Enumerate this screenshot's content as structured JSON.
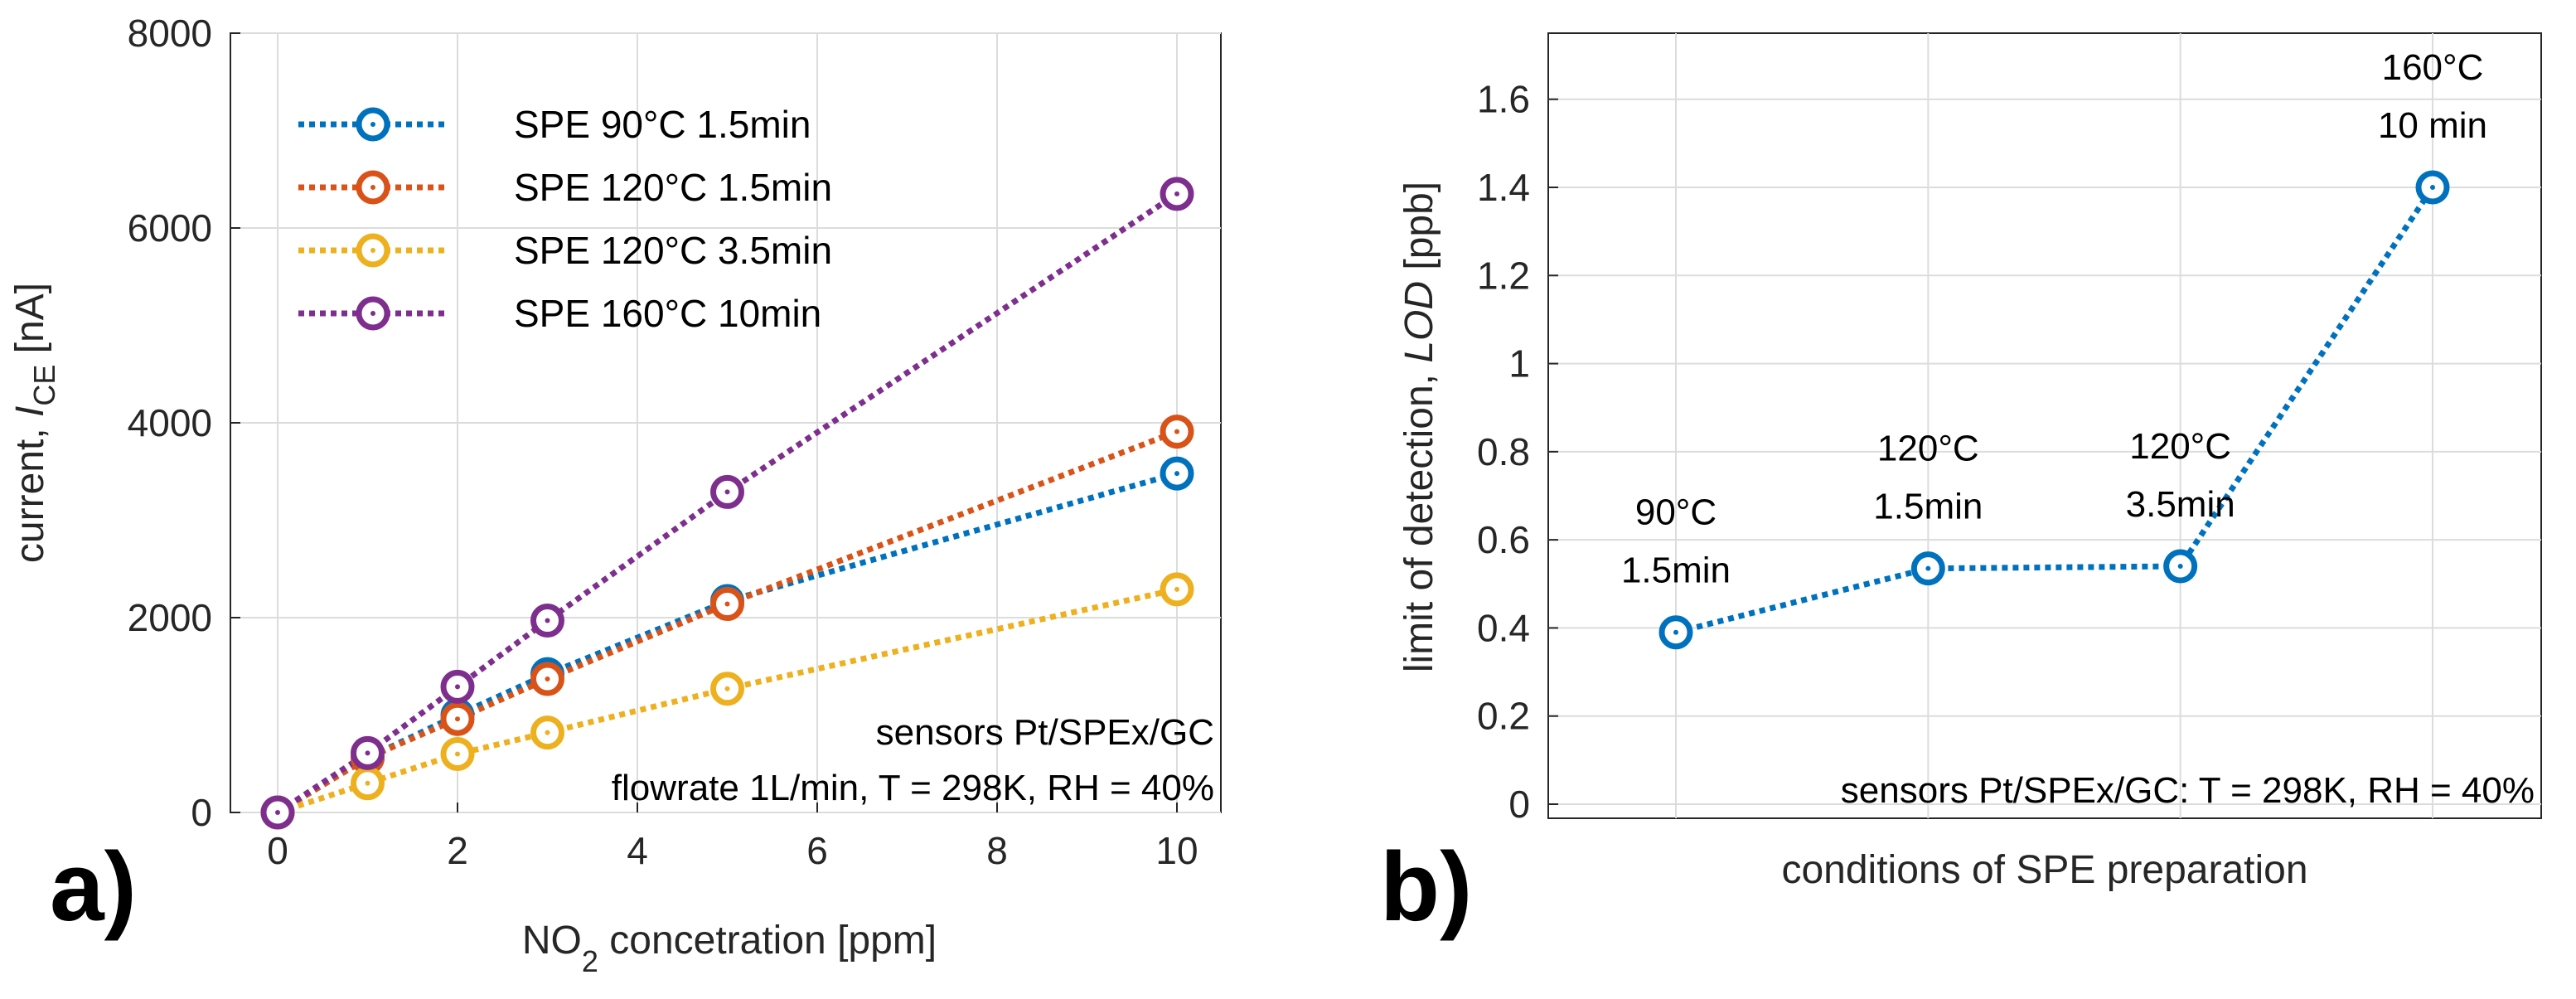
{
  "chart_data": [
    {
      "type": "line",
      "panel_label": "a)",
      "xlabel_main": "NO",
      "xlabel_sub": "2",
      "xlabel_rest": " concetration [ppm]",
      "ylabel_main": "current, ",
      "ylabel_italic": "I",
      "ylabel_sub": "CE",
      "ylabel_rest": " [nA]",
      "xlim": [
        0,
        10
      ],
      "ylim": [
        0,
        8000
      ],
      "xticks": [
        0,
        2,
        4,
        6,
        8,
        10
      ],
      "yticks": [
        0,
        2000,
        4000,
        6000,
        8000
      ],
      "grid": true,
      "legend_position": "top-left",
      "annotations": [
        "sensors Pt/SPEx/GC",
        "flowrate 1L/min, T = 298K, RH = 40%"
      ],
      "x": [
        0,
        1,
        2,
        3,
        5,
        10
      ],
      "series": [
        {
          "name": "SPE 90°C 1.5min",
          "color": "#0072BD",
          "values": [
            0,
            560,
            1000,
            1420,
            2170,
            3480
          ]
        },
        {
          "name": "SPE 120°C 1.5min",
          "color": "#D95319",
          "values": [
            0,
            560,
            960,
            1370,
            2140,
            3910
          ]
        },
        {
          "name": "SPE 120°C 3.5min",
          "color": "#EDB120",
          "values": [
            0,
            300,
            600,
            820,
            1270,
            2290
          ]
        },
        {
          "name": "SPE 160°C 10min",
          "color": "#7E2F8E",
          "values": [
            0,
            610,
            1290,
            1970,
            3290,
            6350
          ]
        }
      ]
    },
    {
      "type": "line",
      "panel_label": "b)",
      "xlabel": "conditions of SPE preparation",
      "ylabel_main": "limit of detection, ",
      "ylabel_italic": "LOD",
      "ylabel_rest": " [ppb]",
      "ylim": [
        0,
        1.75
      ],
      "yticks": [
        "0",
        "0.2",
        "0.4",
        "0.6",
        "0.8",
        "1",
        "1.2",
        "1.4",
        "1.6"
      ],
      "ytick_values": [
        0,
        0.2,
        0.4,
        0.6,
        0.8,
        1.0,
        1.2,
        1.4,
        1.6
      ],
      "grid": true,
      "annotation": "sensors Pt/SPEx/GC: T = 298K, RH = 40%",
      "color": "#0072BD",
      "categories": [
        {
          "line1": "90°C",
          "line2": "1.5min",
          "value": 0.39
        },
        {
          "line1": "120°C",
          "line2": "1.5min",
          "value": 0.535
        },
        {
          "line1": "120°C",
          "line2": "3.5min",
          "value": 0.54
        },
        {
          "line1": "160°C",
          "line2": "10 min",
          "value": 1.4
        }
      ]
    }
  ]
}
